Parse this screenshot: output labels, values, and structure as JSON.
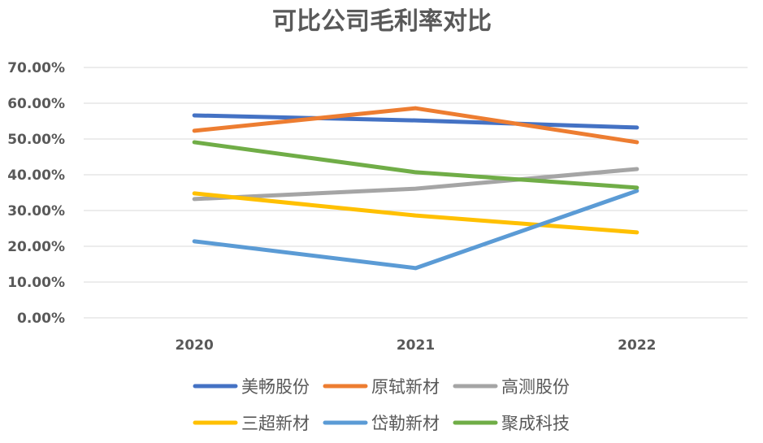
{
  "chart_data": {
    "type": "line",
    "title": "可比公司毛利率对比",
    "categories": [
      "2020",
      "2021",
      "2022"
    ],
    "ylim": [
      0,
      70
    ],
    "yticks": [
      "0.00%",
      "10.00%",
      "20.00%",
      "30.00%",
      "40.00%",
      "50.00%",
      "60.00%",
      "70.00%"
    ],
    "grid": true,
    "legend_position": "bottom",
    "series": [
      {
        "name": "美畅股份",
        "color": "#4472C4",
        "values": [
          56.6,
          55.2,
          53.2
        ]
      },
      {
        "name": "原轼新材",
        "color": "#ED7D31",
        "values": [
          52.3,
          58.6,
          49.1
        ]
      },
      {
        "name": "高测股份",
        "color": "#A5A5A5",
        "values": [
          33.2,
          36.1,
          41.6
        ]
      },
      {
        "name": "三超新材",
        "color": "#FFC000",
        "values": [
          34.8,
          28.6,
          23.9
        ]
      },
      {
        "name": "岱勒新材",
        "color": "#5B9BD5",
        "values": [
          21.4,
          13.9,
          35.5
        ]
      },
      {
        "name": "聚成科技",
        "color": "#70AD47",
        "values": [
          49.1,
          40.7,
          36.4
        ]
      }
    ]
  }
}
